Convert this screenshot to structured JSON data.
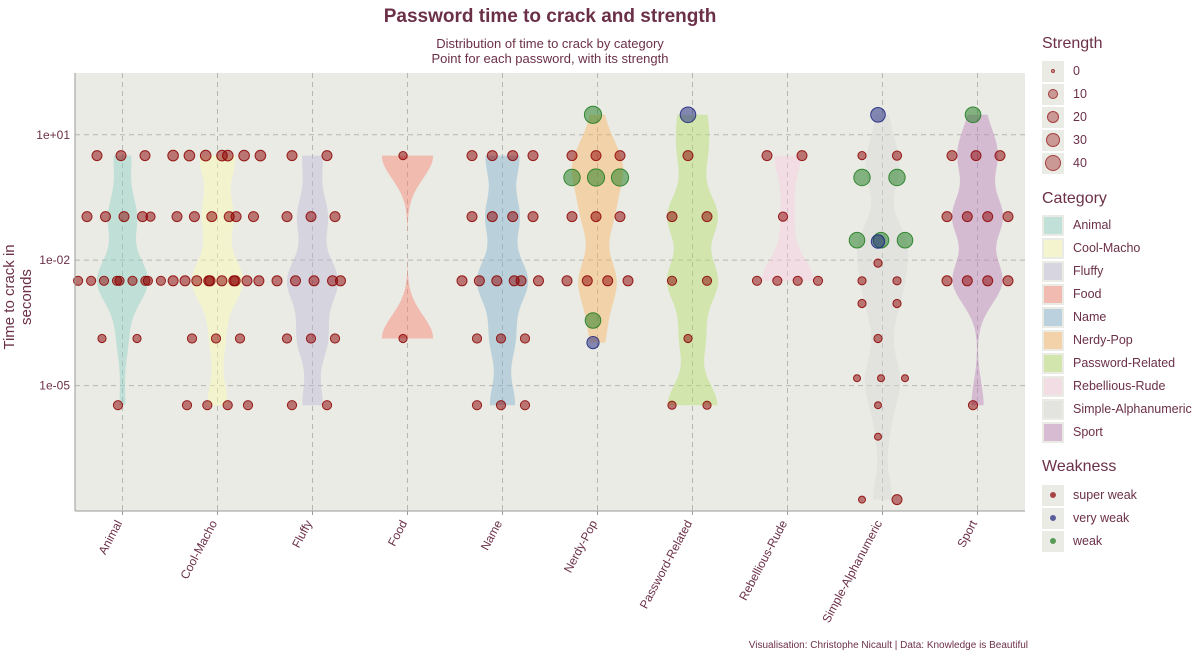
{
  "chart_data": {
    "type": "scatter",
    "title": "Password time to crack and strength",
    "subtitle_line1": "Distribution of time to crack by category",
    "subtitle_line2": "Point for each password, with its strength",
    "ylabel": "Time to crack in seconds",
    "y_scale": "log10",
    "ylim": [
      1e-08,
      300
    ],
    "y_ticks": [
      "1e-05",
      "1e-02",
      "1e+01"
    ],
    "categories": [
      "Animal",
      "Cool-Macho",
      "Fluffy",
      "Food",
      "Name",
      "Nerdy-Pop",
      "Password-Related",
      "Rebellious-Rude",
      "Simple-Alphanumeric",
      "Sport"
    ],
    "category_colors": {
      "Animal": "#8dd3c7",
      "Cool-Macho": "#ffffb3",
      "Fluffy": "#bebada",
      "Food": "#fb8072",
      "Name": "#80b1d3",
      "Nerdy-Pop": "#fdb462",
      "Password-Related": "#b3de69",
      "Rebellious-Rude": "#fccde5",
      "Simple-Alphanumeric": "#d9d9d9",
      "Sport": "#bc80bd"
    },
    "strength_legend": {
      "title": "Strength",
      "values": [
        0,
        10,
        20,
        30,
        40
      ]
    },
    "weakness_legend": {
      "title": "Weakness",
      "items": [
        {
          "label": "super weak",
          "color": "#8b0000"
        },
        {
          "label": "very weak",
          "color": "#1a237e"
        },
        {
          "label": "weak",
          "color": "#1b7a1b"
        }
      ]
    },
    "category_legend_title": "Category",
    "grid": true,
    "legend_position": "right",
    "caption": "Visualisation: Christophe Nicault | Data: Knowledge is Beautiful",
    "points": [
      {
        "cat": "Animal",
        "y": 3.17,
        "s": 8,
        "w": "super weak"
      },
      {
        "cat": "Animal",
        "y": 3.17,
        "s": 8,
        "w": "super weak"
      },
      {
        "cat": "Animal",
        "y": 3.17,
        "s": 8,
        "w": "super weak"
      },
      {
        "cat": "Animal",
        "y": 0.11,
        "s": 8,
        "w": "super weak"
      },
      {
        "cat": "Animal",
        "y": 0.11,
        "s": 8,
        "w": "super weak"
      },
      {
        "cat": "Animal",
        "y": 0.11,
        "s": 8,
        "w": "super weak"
      },
      {
        "cat": "Animal",
        "y": 0.11,
        "s": 8,
        "w": "super weak"
      },
      {
        "cat": "Animal",
        "y": 0.11,
        "s": 6,
        "w": "super weak"
      },
      {
        "cat": "Animal",
        "y": 0.00321,
        "s": 6,
        "w": "super weak"
      },
      {
        "cat": "Animal",
        "y": 0.00321,
        "s": 6,
        "w": "super weak"
      },
      {
        "cat": "Animal",
        "y": 0.00321,
        "s": 6,
        "w": "super weak"
      },
      {
        "cat": "Animal",
        "y": 0.00321,
        "s": 6,
        "w": "super weak"
      },
      {
        "cat": "Animal",
        "y": 0.00321,
        "s": 6,
        "w": "super weak"
      },
      {
        "cat": "Animal",
        "y": 0.00321,
        "s": 6,
        "w": "super weak"
      },
      {
        "cat": "Animal",
        "y": 0.00321,
        "s": 6,
        "w": "super weak"
      },
      {
        "cat": "Animal",
        "y": 0.00321,
        "s": 6,
        "w": "super weak"
      },
      {
        "cat": "Animal",
        "y": 0.00321,
        "s": 6,
        "w": "super weak"
      },
      {
        "cat": "Animal",
        "y": 0.000134,
        "s": 4,
        "w": "super weak"
      },
      {
        "cat": "Animal",
        "y": 0.000134,
        "s": 4,
        "w": "super weak"
      },
      {
        "cat": "Animal",
        "y": 3.4e-06,
        "s": 6,
        "w": "super weak"
      },
      {
        "cat": "Cool-Macho",
        "y": 3.17,
        "s": 10,
        "w": "super weak"
      },
      {
        "cat": "Cool-Macho",
        "y": 3.17,
        "s": 10,
        "w": "super weak"
      },
      {
        "cat": "Cool-Macho",
        "y": 3.17,
        "s": 10,
        "w": "super weak"
      },
      {
        "cat": "Cool-Macho",
        "y": 3.17,
        "s": 10,
        "w": "super weak"
      },
      {
        "cat": "Cool-Macho",
        "y": 3.17,
        "s": 10,
        "w": "super weak"
      },
      {
        "cat": "Cool-Macho",
        "y": 3.17,
        "s": 10,
        "w": "super weak"
      },
      {
        "cat": "Cool-Macho",
        "y": 3.17,
        "s": 10,
        "w": "super weak"
      },
      {
        "cat": "Cool-Macho",
        "y": 0.11,
        "s": 8,
        "w": "super weak"
      },
      {
        "cat": "Cool-Macho",
        "y": 0.11,
        "s": 8,
        "w": "super weak"
      },
      {
        "cat": "Cool-Macho",
        "y": 0.11,
        "s": 8,
        "w": "super weak"
      },
      {
        "cat": "Cool-Macho",
        "y": 0.11,
        "s": 8,
        "w": "super weak"
      },
      {
        "cat": "Cool-Macho",
        "y": 0.11,
        "s": 8,
        "w": "super weak"
      },
      {
        "cat": "Cool-Macho",
        "y": 0.11,
        "s": 8,
        "w": "super weak"
      },
      {
        "cat": "Cool-Macho",
        "y": 0.00321,
        "s": 8,
        "w": "super weak"
      },
      {
        "cat": "Cool-Macho",
        "y": 0.00321,
        "s": 8,
        "w": "super weak"
      },
      {
        "cat": "Cool-Macho",
        "y": 0.00321,
        "s": 8,
        "w": "super weak"
      },
      {
        "cat": "Cool-Macho",
        "y": 0.00321,
        "s": 8,
        "w": "super weak"
      },
      {
        "cat": "Cool-Macho",
        "y": 0.00321,
        "s": 8,
        "w": "super weak"
      },
      {
        "cat": "Cool-Macho",
        "y": 0.00321,
        "s": 8,
        "w": "super weak"
      },
      {
        "cat": "Cool-Macho",
        "y": 0.00321,
        "s": 8,
        "w": "super weak"
      },
      {
        "cat": "Cool-Macho",
        "y": 0.00321,
        "s": 8,
        "w": "super weak"
      },
      {
        "cat": "Cool-Macho",
        "y": 0.00321,
        "s": 8,
        "w": "super weak"
      },
      {
        "cat": "Cool-Macho",
        "y": 0.00321,
        "s": 8,
        "w": "super weak"
      },
      {
        "cat": "Cool-Macho",
        "y": 0.000134,
        "s": 6,
        "w": "super weak"
      },
      {
        "cat": "Cool-Macho",
        "y": 0.000134,
        "s": 6,
        "w": "super weak"
      },
      {
        "cat": "Cool-Macho",
        "y": 0.000134,
        "s": 6,
        "w": "super weak"
      },
      {
        "cat": "Cool-Macho",
        "y": 3.4e-06,
        "s": 6,
        "w": "super weak"
      },
      {
        "cat": "Cool-Macho",
        "y": 3.4e-06,
        "s": 6,
        "w": "super weak"
      },
      {
        "cat": "Cool-Macho",
        "y": 3.4e-06,
        "s": 6,
        "w": "super weak"
      },
      {
        "cat": "Cool-Macho",
        "y": 3.4e-06,
        "s": 6,
        "w": "super weak"
      },
      {
        "cat": "Fluffy",
        "y": 3.17,
        "s": 8,
        "w": "super weak"
      },
      {
        "cat": "Fluffy",
        "y": 3.17,
        "s": 8,
        "w": "super weak"
      },
      {
        "cat": "Fluffy",
        "y": 0.11,
        "s": 8,
        "w": "super weak"
      },
      {
        "cat": "Fluffy",
        "y": 0.11,
        "s": 8,
        "w": "super weak"
      },
      {
        "cat": "Fluffy",
        "y": 0.11,
        "s": 8,
        "w": "super weak"
      },
      {
        "cat": "Fluffy",
        "y": 0.00321,
        "s": 8,
        "w": "super weak"
      },
      {
        "cat": "Fluffy",
        "y": 0.00321,
        "s": 8,
        "w": "super weak"
      },
      {
        "cat": "Fluffy",
        "y": 0.00321,
        "s": 8,
        "w": "super weak"
      },
      {
        "cat": "Fluffy",
        "y": 0.00321,
        "s": 8,
        "w": "super weak"
      },
      {
        "cat": "Fluffy",
        "y": 0.00321,
        "s": 8,
        "w": "super weak"
      },
      {
        "cat": "Fluffy",
        "y": 0.000134,
        "s": 6,
        "w": "super weak"
      },
      {
        "cat": "Fluffy",
        "y": 0.000134,
        "s": 6,
        "w": "super weak"
      },
      {
        "cat": "Fluffy",
        "y": 0.000134,
        "s": 6,
        "w": "super weak"
      },
      {
        "cat": "Fluffy",
        "y": 3.4e-06,
        "s": 6,
        "w": "super weak"
      },
      {
        "cat": "Fluffy",
        "y": 3.4e-06,
        "s": 6,
        "w": "super weak"
      },
      {
        "cat": "Food",
        "y": 3.17,
        "s": 4,
        "w": "super weak"
      },
      {
        "cat": "Food",
        "y": 0.000134,
        "s": 4,
        "w": "super weak"
      },
      {
        "cat": "Name",
        "y": 3.17,
        "s": 8,
        "w": "super weak"
      },
      {
        "cat": "Name",
        "y": 3.17,
        "s": 8,
        "w": "super weak"
      },
      {
        "cat": "Name",
        "y": 3.17,
        "s": 8,
        "w": "super weak"
      },
      {
        "cat": "Name",
        "y": 3.17,
        "s": 8,
        "w": "super weak"
      },
      {
        "cat": "Name",
        "y": 0.11,
        "s": 8,
        "w": "super weak"
      },
      {
        "cat": "Name",
        "y": 0.11,
        "s": 8,
        "w": "super weak"
      },
      {
        "cat": "Name",
        "y": 0.11,
        "s": 8,
        "w": "super weak"
      },
      {
        "cat": "Name",
        "y": 0.11,
        "s": 8,
        "w": "super weak"
      },
      {
        "cat": "Name",
        "y": 0.00321,
        "s": 8,
        "w": "super weak"
      },
      {
        "cat": "Name",
        "y": 0.00321,
        "s": 8,
        "w": "super weak"
      },
      {
        "cat": "Name",
        "y": 0.00321,
        "s": 8,
        "w": "super weak"
      },
      {
        "cat": "Name",
        "y": 0.00321,
        "s": 8,
        "w": "super weak"
      },
      {
        "cat": "Name",
        "y": 0.00321,
        "s": 8,
        "w": "super weak"
      },
      {
        "cat": "Name",
        "y": 0.00321,
        "s": 8,
        "w": "super weak"
      },
      {
        "cat": "Name",
        "y": 0.000134,
        "s": 6,
        "w": "super weak"
      },
      {
        "cat": "Name",
        "y": 0.000134,
        "s": 6,
        "w": "super weak"
      },
      {
        "cat": "Name",
        "y": 0.000134,
        "s": 6,
        "w": "super weak"
      },
      {
        "cat": "Name",
        "y": 3.4e-06,
        "s": 6,
        "w": "super weak"
      },
      {
        "cat": "Name",
        "y": 3.4e-06,
        "s": 6,
        "w": "super weak"
      },
      {
        "cat": "Name",
        "y": 3.4e-06,
        "s": 6,
        "w": "super weak"
      },
      {
        "cat": "Nerdy-Pop",
        "y": 30,
        "s": 40,
        "w": "weak"
      },
      {
        "cat": "Nerdy-Pop",
        "y": 3.17,
        "s": 8,
        "w": "super weak"
      },
      {
        "cat": "Nerdy-Pop",
        "y": 3.17,
        "s": 8,
        "w": "super weak"
      },
      {
        "cat": "Nerdy-Pop",
        "y": 3.17,
        "s": 8,
        "w": "super weak"
      },
      {
        "cat": "Nerdy-Pop",
        "y": 0.95,
        "s": 35,
        "w": "weak"
      },
      {
        "cat": "Nerdy-Pop",
        "y": 0.95,
        "s": 40,
        "w": "weak"
      },
      {
        "cat": "Nerdy-Pop",
        "y": 0.95,
        "s": 40,
        "w": "weak"
      },
      {
        "cat": "Nerdy-Pop",
        "y": 0.11,
        "s": 8,
        "w": "super weak"
      },
      {
        "cat": "Nerdy-Pop",
        "y": 0.11,
        "s": 8,
        "w": "super weak"
      },
      {
        "cat": "Nerdy-Pop",
        "y": 0.11,
        "s": 8,
        "w": "super weak"
      },
      {
        "cat": "Nerdy-Pop",
        "y": 0.00321,
        "s": 8,
        "w": "super weak"
      },
      {
        "cat": "Nerdy-Pop",
        "y": 0.00321,
        "s": 8,
        "w": "super weak"
      },
      {
        "cat": "Nerdy-Pop",
        "y": 0.00321,
        "s": 8,
        "w": "super weak"
      },
      {
        "cat": "Nerdy-Pop",
        "y": 0.00321,
        "s": 8,
        "w": "super weak"
      },
      {
        "cat": "Nerdy-Pop",
        "y": 0.00036,
        "s": 30,
        "w": "weak"
      },
      {
        "cat": "Nerdy-Pop",
        "y": 0.000107,
        "s": 15,
        "w": "very weak"
      },
      {
        "cat": "Password-Related",
        "y": 30,
        "s": 30,
        "w": "very weak"
      },
      {
        "cat": "Password-Related",
        "y": 3.17,
        "s": 8,
        "w": "super weak"
      },
      {
        "cat": "Password-Related",
        "y": 0.11,
        "s": 8,
        "w": "super weak"
      },
      {
        "cat": "Password-Related",
        "y": 0.11,
        "s": 8,
        "w": "super weak"
      },
      {
        "cat": "Password-Related",
        "y": 0.00321,
        "s": 6,
        "w": "super weak"
      },
      {
        "cat": "Password-Related",
        "y": 0.00321,
        "s": 6,
        "w": "super weak"
      },
      {
        "cat": "Password-Related",
        "y": 0.000134,
        "s": 4,
        "w": "super weak"
      },
      {
        "cat": "Password-Related",
        "y": 3.4e-06,
        "s": 4,
        "w": "super weak"
      },
      {
        "cat": "Password-Related",
        "y": 3.4e-06,
        "s": 4,
        "w": "super weak"
      },
      {
        "cat": "Rebellious-Rude",
        "y": 3.17,
        "s": 8,
        "w": "super weak"
      },
      {
        "cat": "Rebellious-Rude",
        "y": 3.17,
        "s": 8,
        "w": "super weak"
      },
      {
        "cat": "Rebellious-Rude",
        "y": 0.11,
        "s": 6,
        "w": "super weak"
      },
      {
        "cat": "Rebellious-Rude",
        "y": 0.00321,
        "s": 6,
        "w": "super weak"
      },
      {
        "cat": "Rebellious-Rude",
        "y": 0.00321,
        "s": 6,
        "w": "super weak"
      },
      {
        "cat": "Rebellious-Rude",
        "y": 0.00321,
        "s": 6,
        "w": "super weak"
      },
      {
        "cat": "Rebellious-Rude",
        "y": 0.00321,
        "s": 6,
        "w": "super weak"
      },
      {
        "cat": "Simple-Alphanumeric",
        "y": 30,
        "s": 25,
        "w": "very weak"
      },
      {
        "cat": "Simple-Alphanumeric",
        "y": 3.17,
        "s": 4,
        "w": "super weak"
      },
      {
        "cat": "Simple-Alphanumeric",
        "y": 3.17,
        "s": 6,
        "w": "super weak"
      },
      {
        "cat": "Simple-Alphanumeric",
        "y": 0.95,
        "s": 35,
        "w": "weak"
      },
      {
        "cat": "Simple-Alphanumeric",
        "y": 0.95,
        "s": 35,
        "w": "weak"
      },
      {
        "cat": "Simple-Alphanumeric",
        "y": 0.03,
        "s": 30,
        "w": "weak"
      },
      {
        "cat": "Simple-Alphanumeric",
        "y": 0.03,
        "s": 30,
        "w": "weak"
      },
      {
        "cat": "Simple-Alphanumeric",
        "y": 0.03,
        "s": 30,
        "w": "weak"
      },
      {
        "cat": "Simple-Alphanumeric",
        "y": 0.028,
        "s": 20,
        "w": "very weak"
      },
      {
        "cat": "Simple-Alphanumeric",
        "y": 0.0085,
        "s": 4,
        "w": "super weak"
      },
      {
        "cat": "Simple-Alphanumeric",
        "y": 0.00321,
        "s": 4,
        "w": "super weak"
      },
      {
        "cat": "Simple-Alphanumeric",
        "y": 0.00321,
        "s": 4,
        "w": "super weak"
      },
      {
        "cat": "Simple-Alphanumeric",
        "y": 0.00092,
        "s": 4,
        "w": "super weak"
      },
      {
        "cat": "Simple-Alphanumeric",
        "y": 0.00092,
        "s": 4,
        "w": "super weak"
      },
      {
        "cat": "Simple-Alphanumeric",
        "y": 0.000134,
        "s": 4,
        "w": "super weak"
      },
      {
        "cat": "Simple-Alphanumeric",
        "y": 1.5e-05,
        "s": 2,
        "w": "super weak"
      },
      {
        "cat": "Simple-Alphanumeric",
        "y": 1.5e-05,
        "s": 2,
        "w": "super weak"
      },
      {
        "cat": "Simple-Alphanumeric",
        "y": 1.5e-05,
        "s": 2,
        "w": "super weak"
      },
      {
        "cat": "Simple-Alphanumeric",
        "y": 3.4e-06,
        "s": 2,
        "w": "super weak"
      },
      {
        "cat": "Simple-Alphanumeric",
        "y": 6e-07,
        "s": 2,
        "w": "super weak"
      },
      {
        "cat": "Simple-Alphanumeric",
        "y": 1.87e-08,
        "s": 2,
        "w": "super weak"
      },
      {
        "cat": "Simple-Alphanumeric",
        "y": 1.87e-08,
        "s": 8,
        "w": "super weak"
      },
      {
        "cat": "Sport",
        "y": 30,
        "s": 30,
        "w": "weak"
      },
      {
        "cat": "Sport",
        "y": 3.17,
        "s": 8,
        "w": "super weak"
      },
      {
        "cat": "Sport",
        "y": 3.17,
        "s": 8,
        "w": "super weak"
      },
      {
        "cat": "Sport",
        "y": 3.17,
        "s": 8,
        "w": "super weak"
      },
      {
        "cat": "Sport",
        "y": 0.11,
        "s": 8,
        "w": "super weak"
      },
      {
        "cat": "Sport",
        "y": 0.11,
        "s": 8,
        "w": "super weak"
      },
      {
        "cat": "Sport",
        "y": 0.11,
        "s": 8,
        "w": "super weak"
      },
      {
        "cat": "Sport",
        "y": 0.11,
        "s": 8,
        "w": "super weak"
      },
      {
        "cat": "Sport",
        "y": 0.00321,
        "s": 8,
        "w": "super weak"
      },
      {
        "cat": "Sport",
        "y": 0.00321,
        "s": 8,
        "w": "super weak"
      },
      {
        "cat": "Sport",
        "y": 0.00321,
        "s": 8,
        "w": "super weak"
      },
      {
        "cat": "Sport",
        "y": 0.00321,
        "s": 8,
        "w": "super weak"
      },
      {
        "cat": "Sport",
        "y": 3.4e-06,
        "s": 6,
        "w": "super weak"
      }
    ]
  }
}
